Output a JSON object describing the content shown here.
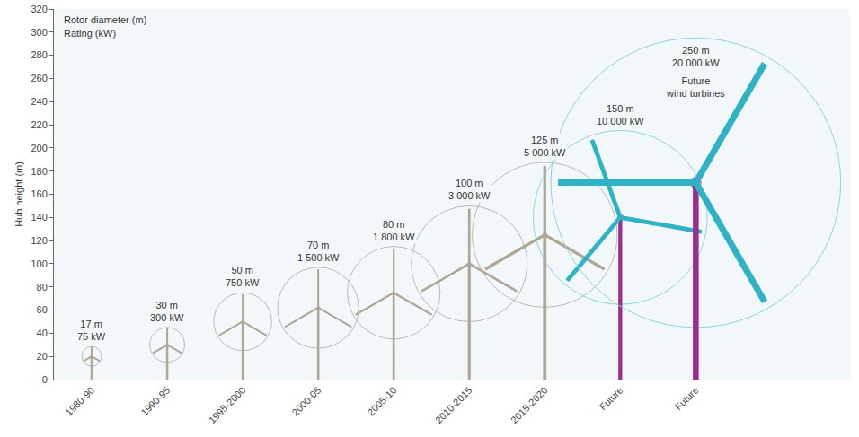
{
  "chart_data": {
    "type": "scatter",
    "y_label": "Hub height (m)",
    "categories": [
      "1980-90",
      "1990-95",
      "1995-2000",
      "2000-05",
      "2005-10",
      "2010-2015",
      "2015-2020",
      "Future",
      "Future"
    ],
    "values": [
      20,
      30,
      50,
      62,
      75,
      100,
      125,
      140,
      170
    ],
    "rotor_diameter": {
      "values": [
        17,
        30,
        50,
        70,
        80,
        100,
        125,
        150,
        250
      ],
      "value_labels": [
        "17 m",
        "30 m",
        "50 m",
        "70 m",
        "80 m",
        "100 m",
        "125 m",
        "150 m",
        "250 m"
      ]
    },
    "rating": {
      "values": [
        75,
        300,
        750,
        1500,
        1800,
        3000,
        5000,
        10000,
        20000
      ],
      "value_labels": [
        "75 kW",
        "300 kW",
        "750 kW",
        "1 500 kW",
        "1 800 kW",
        "3 000 kW",
        "5 000 kW",
        "10 000 kW",
        "20 000 kW"
      ]
    },
    "colors": [
      "#aea796",
      "#aea796",
      "#aea796",
      "#aea796",
      "#aea796",
      "#aea796",
      "#aea796",
      "#2fb3c4",
      "#2fb3c4"
    ],
    "ylim": [
      0,
      320
    ],
    "yticks": [
      0,
      20,
      40,
      60,
      80,
      100,
      120,
      140,
      160,
      180,
      200,
      220,
      240,
      260,
      280,
      300,
      320
    ],
    "grid": false,
    "annotations": [
      {
        "text": "Rotor diameter (m)"
      },
      {
        "text": "Rating (kW)"
      },
      {
        "text": "Future wind turbines",
        "x": 8
      }
    ]
  }
}
